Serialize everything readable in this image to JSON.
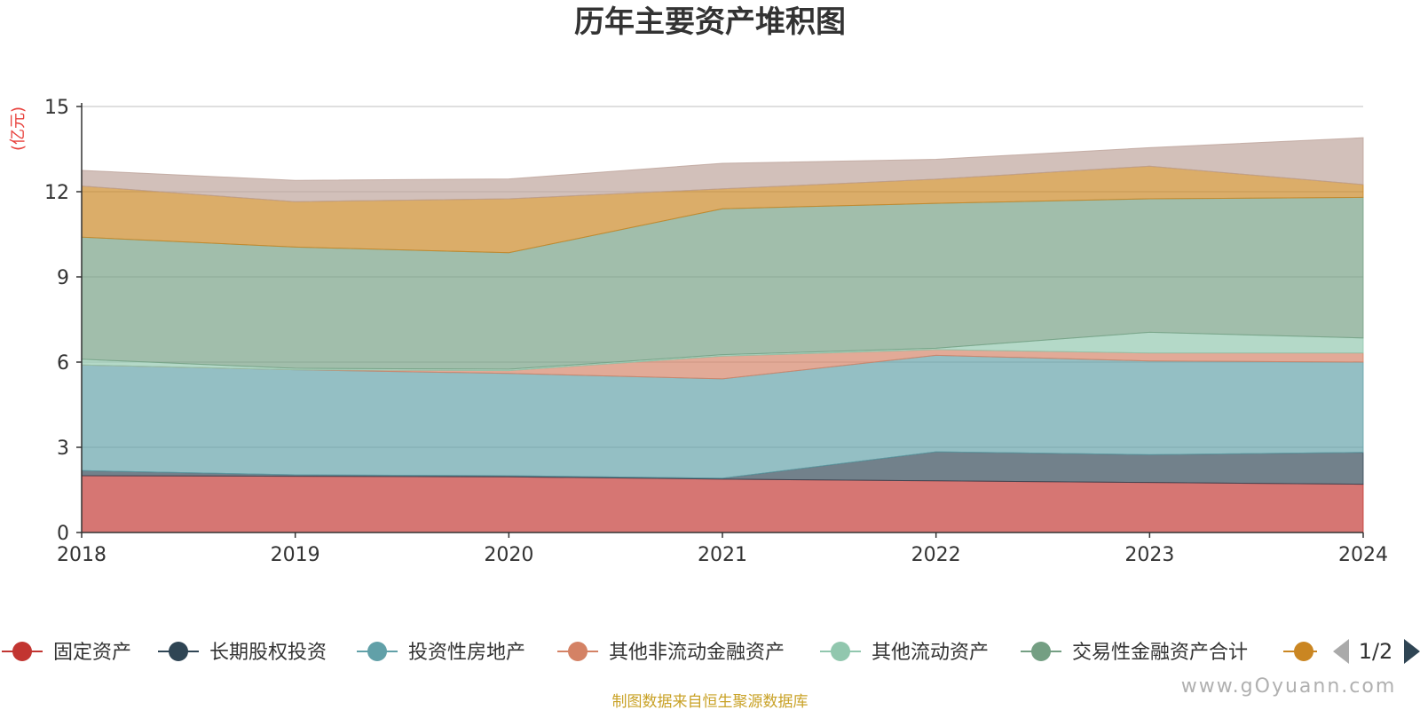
{
  "chart_data": {
    "type": "area",
    "stacked": true,
    "title": "历年主要资产堆积图",
    "ylabel": "(亿元)",
    "xlabel": "",
    "x": [
      "2018",
      "2019",
      "2020",
      "2021",
      "2022",
      "2023",
      "2024"
    ],
    "ylim": [
      0,
      15
    ],
    "yticks": [
      0,
      3,
      6,
      9,
      12,
      15
    ],
    "grid": true,
    "legend_position": "bottom",
    "series": [
      {
        "name": "固定资产",
        "color": "#c23531",
        "values": [
          2.0,
          1.98,
          1.96,
          1.88,
          1.82,
          1.76,
          1.7
        ]
      },
      {
        "name": "长期股权投资",
        "color": "#2f4554",
        "values": [
          0.18,
          0.05,
          0.04,
          0.03,
          1.02,
          0.98,
          1.12
        ]
      },
      {
        "name": "投资性房地产",
        "color": "#61a0a8",
        "values": [
          3.72,
          3.7,
          3.6,
          3.5,
          3.4,
          3.3,
          3.18
        ]
      },
      {
        "name": "其他非流动金融资产",
        "color": "#d48265",
        "values": [
          0.0,
          0.0,
          0.1,
          0.8,
          0.2,
          0.28,
          0.32
        ]
      },
      {
        "name": "其他流动资产",
        "color": "#91c7ae",
        "values": [
          0.2,
          0.05,
          0.05,
          0.05,
          0.05,
          0.73,
          0.53
        ]
      },
      {
        "name": "交易性金融资产合计",
        "color": "#749f83",
        "values": [
          4.3,
          4.27,
          4.1,
          5.14,
          5.1,
          4.7,
          4.95
        ]
      },
      {
        "name": "",
        "color": "#ca8622",
        "values": [
          1.8,
          1.6,
          1.9,
          0.7,
          0.85,
          1.15,
          0.45
        ]
      },
      {
        "name": "",
        "color": "#bda29a",
        "values": [
          0.55,
          0.75,
          0.7,
          0.9,
          0.7,
          0.65,
          1.65
        ]
      }
    ]
  },
  "legend": {
    "page": "1/2",
    "visible_items": [
      "固定资产",
      "长期股权投资",
      "投资性房地产",
      "其他非流动金融资产",
      "其他流动资产",
      "交易性金融资产合计"
    ],
    "partial_item_color": "#ca8622",
    "prev_icon": "triangle-left-icon",
    "next_icon": "triangle-right-icon"
  },
  "source_text": "制图数据来自恒生聚源数据库",
  "watermark_text": "www.gOyuann.com"
}
